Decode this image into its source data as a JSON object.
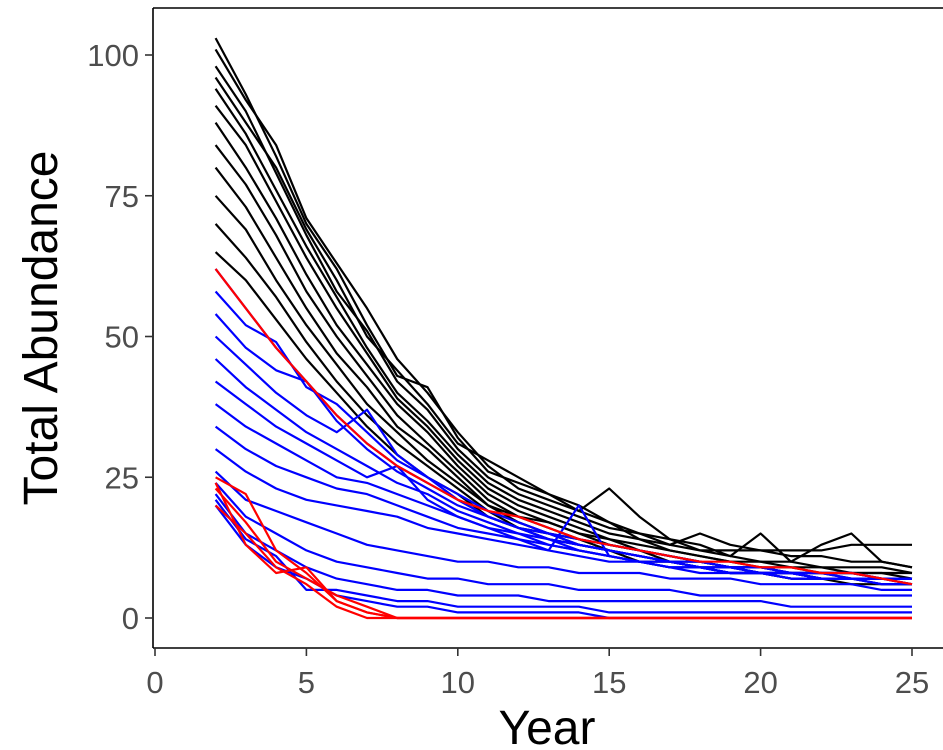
{
  "chart_data": {
    "type": "line",
    "title": "",
    "xlabel": "Year",
    "ylabel": "Total Abundance",
    "xlim": [
      -0.3,
      26
    ],
    "ylim": [
      -5,
      108
    ],
    "x_ticks": [
      0,
      5,
      10,
      15,
      20,
      25
    ],
    "y_ticks": [
      0,
      25,
      50,
      75,
      100
    ],
    "grid": false,
    "legend": "none",
    "colors": {
      "black_series": "#000000",
      "blue_series": "#0000ff",
      "red_series": "#ff0000",
      "axis": "#000000",
      "tick_text": "#4d4d4d"
    },
    "x": [
      2,
      3,
      4,
      5,
      6,
      7,
      8,
      9,
      10,
      11,
      12,
      13,
      14,
      15,
      16,
      17,
      18,
      19,
      20,
      21,
      22,
      23,
      24,
      25
    ],
    "series": [
      {
        "color": "#000000",
        "values": [
          103,
          93,
          82,
          70,
          62,
          52,
          43,
          41,
          32,
          26,
          24,
          22,
          20,
          17,
          15,
          13,
          12,
          12,
          12,
          11,
          11,
          10,
          10,
          9
        ]
      },
      {
        "color": "#000000",
        "values": [
          101,
          92,
          84,
          71,
          63,
          55,
          46,
          40,
          33,
          27,
          23,
          21,
          19,
          23,
          18,
          14,
          13,
          11,
          15,
          10,
          13,
          15,
          10,
          9
        ]
      },
      {
        "color": "#000000",
        "values": [
          98,
          90,
          79,
          68,
          58,
          51,
          42,
          37,
          30,
          25,
          22,
          20,
          18,
          16,
          15,
          14,
          12,
          11,
          10,
          10,
          9,
          9,
          9,
          8
        ]
      },
      {
        "color": "#000000",
        "values": [
          96,
          88,
          80,
          69,
          60,
          50,
          44,
          38,
          31,
          28,
          25,
          22,
          19,
          17,
          14,
          13,
          15,
          13,
          12,
          12,
          12,
          13,
          13,
          13
        ]
      },
      {
        "color": "#000000",
        "values": [
          94,
          86,
          76,
          66,
          57,
          48,
          40,
          35,
          29,
          24,
          21,
          19,
          17,
          15,
          14,
          12,
          11,
          10,
          10,
          9,
          9,
          8,
          8,
          8
        ]
      },
      {
        "color": "#000000",
        "values": [
          91,
          84,
          74,
          64,
          55,
          47,
          39,
          34,
          28,
          23,
          20,
          18,
          16,
          14,
          13,
          12,
          11,
          10,
          9,
          9,
          8,
          8,
          8,
          7
        ]
      },
      {
        "color": "#000000",
        "values": [
          88,
          80,
          71,
          61,
          52,
          45,
          38,
          33,
          27,
          22,
          19,
          17,
          15,
          14,
          12,
          11,
          10,
          9,
          9,
          8,
          8,
          8,
          7,
          7
        ]
      },
      {
        "color": "#000000",
        "values": [
          84,
          77,
          68,
          58,
          50,
          43,
          36,
          31,
          26,
          21,
          18,
          17,
          15,
          13,
          12,
          11,
          10,
          9,
          9,
          8,
          8,
          7,
          7,
          7
        ]
      },
      {
        "color": "#000000",
        "values": [
          80,
          73,
          64,
          55,
          47,
          41,
          34,
          30,
          25,
          20,
          18,
          16,
          14,
          13,
          12,
          10,
          10,
          9,
          8,
          8,
          7,
          7,
          7,
          7
        ]
      },
      {
        "color": "#000000",
        "values": [
          75,
          69,
          60,
          52,
          45,
          38,
          33,
          28,
          24,
          20,
          17,
          15,
          14,
          12,
          11,
          10,
          9,
          9,
          8,
          8,
          7,
          7,
          7,
          6
        ]
      },
      {
        "color": "#000000",
        "values": [
          70,
          64,
          57,
          49,
          42,
          36,
          31,
          27,
          23,
          19,
          16,
          15,
          13,
          12,
          11,
          10,
          9,
          8,
          8,
          7,
          7,
          7,
          6,
          6
        ]
      },
      {
        "color": "#000000",
        "values": [
          65,
          60,
          53,
          46,
          40,
          34,
          29,
          25,
          22,
          18,
          16,
          14,
          13,
          12,
          10,
          10,
          9,
          8,
          8,
          7,
          7,
          6,
          6,
          6
        ]
      },
      {
        "color": "#0000ff",
        "values": [
          62,
          55,
          48,
          42,
          36,
          31,
          27,
          24,
          21,
          18,
          16,
          14,
          13,
          12,
          11,
          10,
          9,
          9,
          8,
          8,
          7,
          7,
          7,
          7
        ]
      },
      {
        "color": "#0000ff",
        "values": [
          58,
          52,
          49,
          41,
          38,
          33,
          28,
          25,
          22,
          19,
          17,
          15,
          14,
          13,
          12,
          11,
          10,
          9,
          9,
          8,
          8,
          8,
          7,
          7
        ]
      },
      {
        "color": "#0000ff",
        "values": [
          54,
          48,
          44,
          42,
          35,
          30,
          26,
          23,
          20,
          18,
          16,
          14,
          13,
          12,
          11,
          10,
          9,
          9,
          8,
          8,
          8,
          7,
          7,
          7
        ]
      },
      {
        "color": "#0000ff",
        "values": [
          50,
          45,
          40,
          36,
          33,
          37,
          29,
          25,
          21,
          18,
          16,
          15,
          13,
          12,
          11,
          10,
          10,
          9,
          9,
          8,
          8,
          8,
          7,
          7
        ]
      },
      {
        "color": "#0000ff",
        "values": [
          46,
          41,
          37,
          33,
          30,
          27,
          24,
          22,
          19,
          17,
          15,
          14,
          12,
          11,
          10,
          10,
          9,
          8,
          8,
          8,
          7,
          7,
          7,
          7
        ]
      },
      {
        "color": "#0000ff",
        "values": [
          42,
          38,
          34,
          31,
          28,
          25,
          27,
          21,
          18,
          16,
          15,
          13,
          12,
          11,
          10,
          9,
          9,
          8,
          8,
          8,
          7,
          7,
          7,
          6
        ]
      },
      {
        "color": "#0000ff",
        "values": [
          38,
          34,
          31,
          28,
          25,
          24,
          22,
          20,
          18,
          16,
          14,
          13,
          12,
          11,
          10,
          9,
          9,
          8,
          8,
          7,
          7,
          7,
          6,
          6
        ]
      },
      {
        "color": "#0000ff",
        "values": [
          34,
          30,
          27,
          25,
          23,
          22,
          20,
          18,
          16,
          15,
          14,
          12,
          20,
          11,
          10,
          9,
          9,
          8,
          8,
          8,
          7,
          7,
          7,
          7
        ]
      },
      {
        "color": "#0000ff",
        "values": [
          30,
          26,
          23,
          21,
          20,
          19,
          18,
          16,
          15,
          14,
          13,
          12,
          11,
          10,
          10,
          9,
          8,
          8,
          8,
          7,
          7,
          7,
          6,
          6
        ]
      },
      {
        "color": "#0000ff",
        "values": [
          26,
          21,
          19,
          17,
          15,
          13,
          12,
          11,
          10,
          10,
          9,
          9,
          8,
          8,
          8,
          7,
          7,
          7,
          6,
          6,
          6,
          6,
          5,
          5
        ]
      },
      {
        "color": "#0000ff",
        "values": [
          24,
          18,
          15,
          12,
          10,
          9,
          8,
          7,
          7,
          6,
          6,
          6,
          5,
          5,
          5,
          5,
          4,
          4,
          4,
          4,
          4,
          4,
          4,
          4
        ]
      },
      {
        "color": "#0000ff",
        "values": [
          22,
          15,
          12,
          9,
          7,
          6,
          5,
          5,
          4,
          4,
          4,
          3,
          3,
          3,
          3,
          3,
          3,
          3,
          3,
          2,
          2,
          2,
          2,
          2
        ]
      },
      {
        "color": "#0000ff",
        "values": [
          21,
          14,
          11,
          5,
          5,
          4,
          3,
          3,
          2,
          2,
          2,
          2,
          2,
          1,
          1,
          1,
          1,
          1,
          1,
          1,
          1,
          1,
          1,
          1
        ]
      },
      {
        "color": "#0000ff",
        "values": [
          20,
          13,
          9,
          7,
          4,
          3,
          2,
          2,
          1,
          1,
          1,
          1,
          1,
          0,
          0,
          0,
          0,
          0,
          0,
          0,
          0,
          0,
          0,
          0
        ]
      },
      {
        "color": "#ff0000",
        "values": [
          25,
          22,
          12,
          8,
          3,
          1,
          0,
          0,
          0,
          0,
          0,
          0,
          0,
          0,
          0,
          0,
          0,
          0,
          0,
          0,
          0,
          0,
          0,
          0
        ]
      },
      {
        "color": "#ff0000",
        "values": [
          23,
          17,
          10,
          7,
          4,
          2,
          0,
          0,
          0,
          0,
          0,
          0,
          0,
          0,
          0,
          0,
          0,
          0,
          0,
          0,
          0,
          0,
          0,
          0
        ]
      },
      {
        "color": "#ff0000",
        "values": [
          24,
          13,
          8,
          9,
          3,
          1,
          0,
          0,
          0,
          0,
          0,
          0,
          0,
          0,
          0,
          0,
          0,
          0,
          0,
          0,
          0,
          0,
          0,
          0
        ]
      },
      {
        "color": "#ff0000",
        "values": [
          20,
          15,
          9,
          6,
          2,
          0,
          0,
          0,
          0,
          0,
          0,
          0,
          0,
          0,
          0,
          0,
          0,
          0,
          0,
          0,
          0,
          0,
          0,
          0
        ]
      },
      {
        "color": "#ff0000",
        "values": [
          62,
          55,
          48,
          42,
          36,
          31,
          27,
          24,
          21,
          19,
          18,
          16,
          14,
          13,
          12,
          11,
          10,
          10,
          9,
          9,
          8,
          8,
          7,
          6
        ]
      }
    ]
  }
}
